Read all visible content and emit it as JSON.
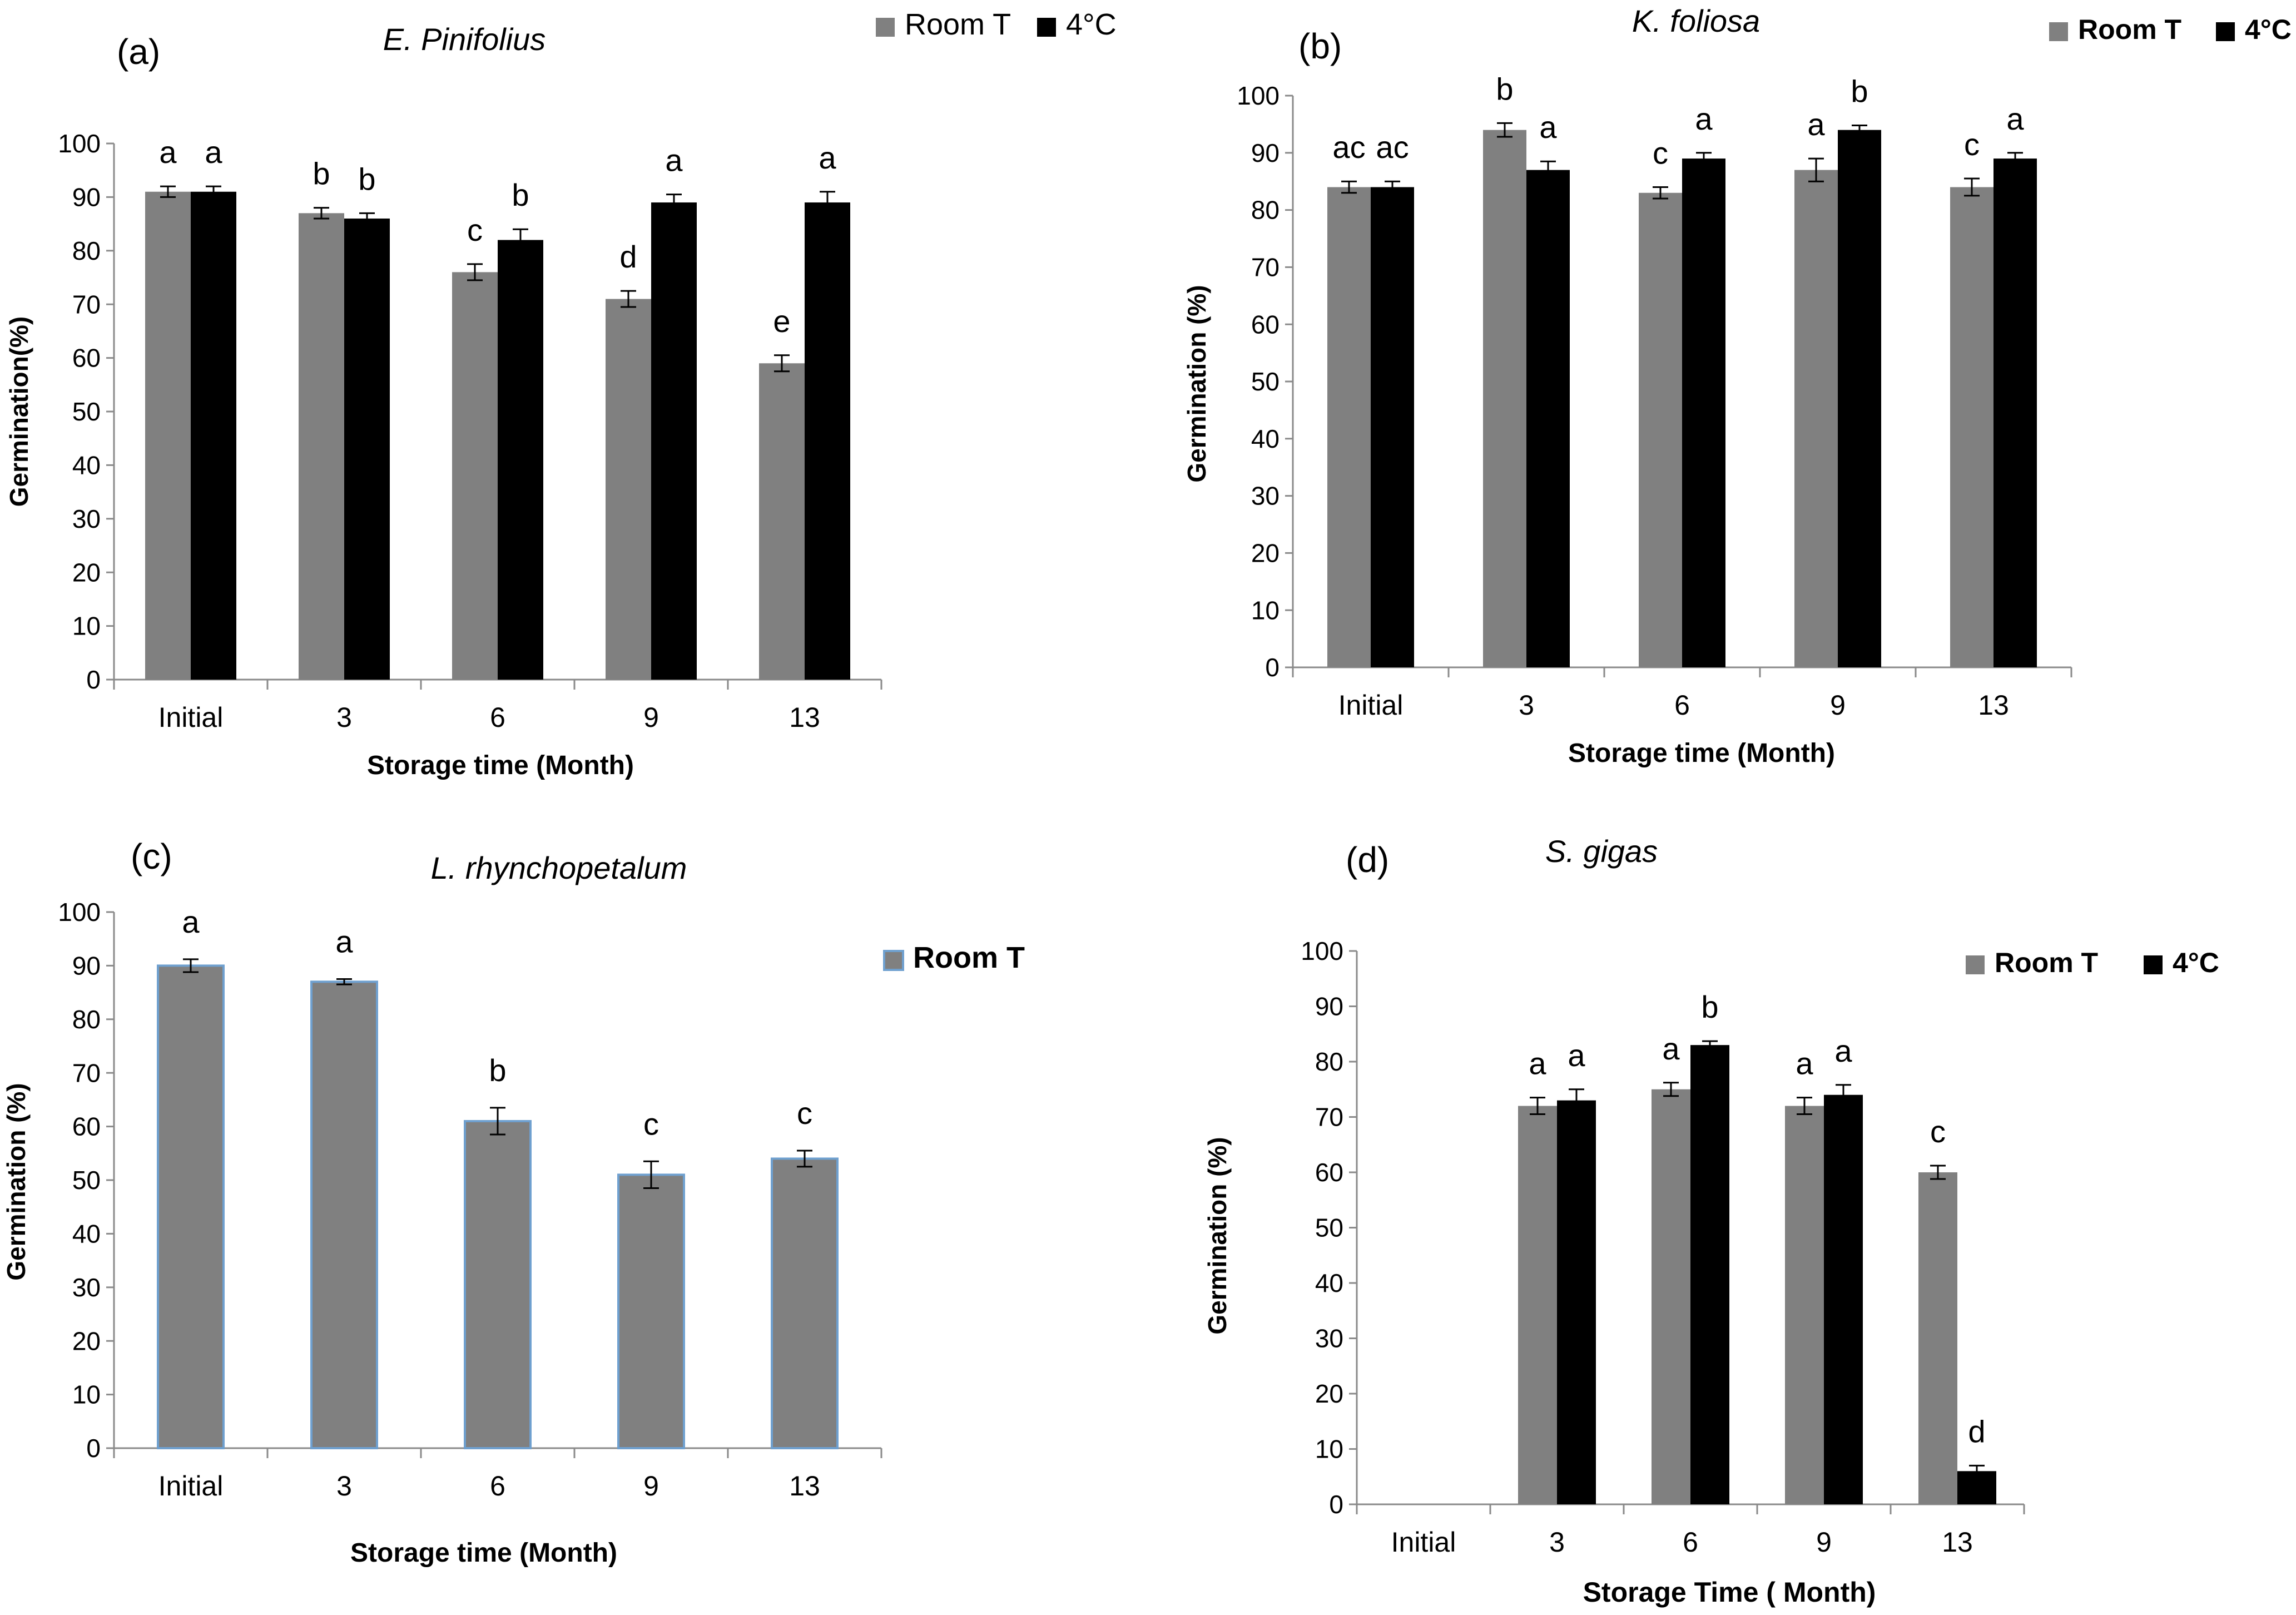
{
  "chart_data": [
    {
      "type": "bar",
      "panel_label": "(a)",
      "title": "E. Pinifolius",
      "xlabel": "Storage time (Month)",
      "ylabel": "Germination(%)",
      "ylim": [
        0,
        100
      ],
      "yticks": [
        "0",
        "10",
        "20",
        "30",
        "40",
        "50",
        "60",
        "70",
        "80",
        "90",
        "100"
      ],
      "categories": [
        "Initial",
        "3",
        "6",
        "9",
        "13"
      ],
      "legend_position": "top-right",
      "series": [
        {
          "name": "Room T",
          "color": "#808080",
          "values": [
            91,
            87,
            76,
            71,
            59
          ],
          "errors": [
            1,
            1,
            1.5,
            1.5,
            1.5
          ],
          "labels": [
            "a",
            "b",
            "c",
            "d",
            "e"
          ]
        },
        {
          "name": "4°C",
          "color": "#000000",
          "values": [
            91,
            86,
            82,
            89,
            89
          ],
          "errors": [
            1,
            1,
            2,
            1.5,
            2
          ],
          "labels": [
            "a",
            "b",
            "b",
            "a",
            "a"
          ]
        }
      ]
    },
    {
      "type": "bar",
      "panel_label": "(b)",
      "title": "K. foliosa",
      "xlabel": "Storage time (Month)",
      "ylabel": "Germination (%)",
      "ylim": [
        0,
        100
      ],
      "yticks": [
        "0",
        "10",
        "20",
        "30",
        "40",
        "50",
        "60",
        "70",
        "80",
        "90",
        "100"
      ],
      "categories": [
        "Initial",
        "3",
        "6",
        "9",
        "13"
      ],
      "legend_position": "top-right",
      "series": [
        {
          "name": "Room T",
          "color": "#808080",
          "values": [
            84,
            94,
            83,
            87,
            84
          ],
          "errors": [
            1,
            1.2,
            1,
            2,
            1.5
          ],
          "labels": [
            "ac",
            "b",
            "c",
            "a",
            "c"
          ]
        },
        {
          "name": "4°C",
          "color": "#000000",
          "values": [
            84,
            87,
            89,
            94,
            89
          ],
          "errors": [
            1,
            1.5,
            1,
            0.8,
            1
          ],
          "labels": [
            "ac",
            "a",
            "a",
            "b",
            "a"
          ]
        }
      ]
    },
    {
      "type": "bar",
      "panel_label": "(c)",
      "title": "L. rhynchopetalum",
      "xlabel": "Storage time (Month)",
      "ylabel": "Germination (%)",
      "ylim": [
        0,
        100
      ],
      "yticks": [
        "0",
        "10",
        "20",
        "30",
        "40",
        "50",
        "60",
        "70",
        "80",
        "90",
        "100"
      ],
      "categories": [
        "Initial",
        "3",
        "6",
        "9",
        "13"
      ],
      "legend_position": "top-right",
      "series": [
        {
          "name": "Room T",
          "color": "#808080",
          "values": [
            90,
            87,
            61,
            51,
            54
          ],
          "errors": [
            1.2,
            0.5,
            2.5,
            2.5,
            1.5
          ],
          "labels": [
            "a",
            "a",
            "b",
            "c",
            "c"
          ]
        }
      ]
    },
    {
      "type": "bar",
      "panel_label": "(d)",
      "title": "S. gigas",
      "xlabel": "Storage Time ( Month)",
      "ylabel": "Germination (%)",
      "ylim": [
        0,
        100
      ],
      "yticks": [
        "0",
        "10",
        "20",
        "30",
        "40",
        "50",
        "60",
        "70",
        "80",
        "90",
        "100"
      ],
      "categories": [
        "Initial",
        "3",
        "6",
        "9",
        "13"
      ],
      "legend_position": "top-right",
      "series": [
        {
          "name": "Room T",
          "color": "#808080",
          "values": [
            null,
            72,
            75,
            72,
            60
          ],
          "errors": [
            0,
            1.5,
            1.2,
            1.5,
            1.2
          ],
          "labels": [
            "",
            "a",
            "a",
            "a",
            "c"
          ]
        },
        {
          "name": "4°C",
          "color": "#000000",
          "values": [
            null,
            73,
            83,
            74,
            6
          ],
          "errors": [
            0,
            2,
            0.7,
            1.8,
            1
          ],
          "labels": [
            "",
            "a",
            "b",
            "a",
            "d"
          ]
        }
      ]
    }
  ]
}
